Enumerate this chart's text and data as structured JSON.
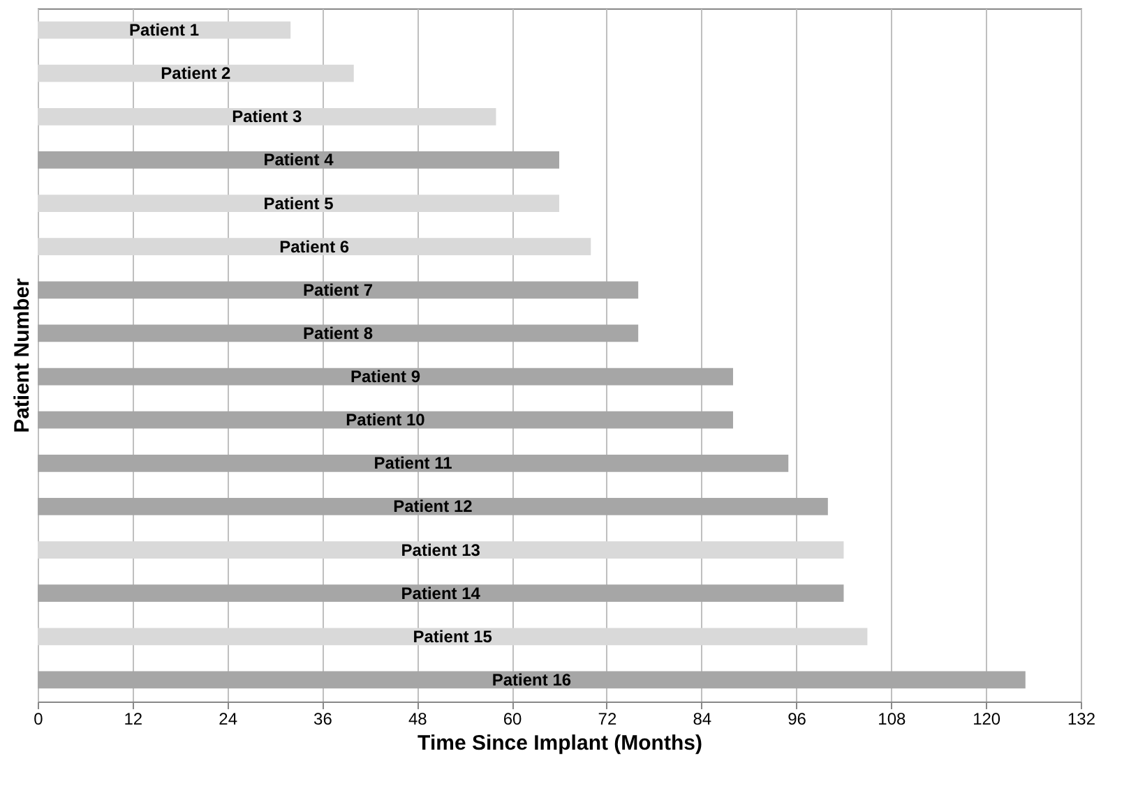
{
  "chart_data": {
    "type": "bar",
    "orientation": "horizontal",
    "xlabel": "Time Since Implant (Months)",
    "ylabel": "Patient Number",
    "categories": [
      "Patient 1",
      "Patient 2",
      "Patient 3",
      "Patient 4",
      "Patient 5",
      "Patient 6",
      "Patient 7",
      "Patient 8",
      "Patient 9",
      "Patient 10",
      "Patient 11",
      "Patient 12",
      "Patient 13",
      "Patient 14",
      "Patient 15",
      "Patient 16"
    ],
    "values": [
      32,
      40,
      58,
      66,
      66,
      70,
      76,
      76,
      88,
      88,
      95,
      100,
      102,
      102,
      105,
      125
    ],
    "colors": [
      "#d9d9d9",
      "#d9d9d9",
      "#d9d9d9",
      "#a6a6a6",
      "#d9d9d9",
      "#d9d9d9",
      "#a6a6a6",
      "#a6a6a6",
      "#a6a6a6",
      "#a6a6a6",
      "#a6a6a6",
      "#a6a6a6",
      "#d9d9d9",
      "#a6a6a6",
      "#d9d9d9",
      "#a6a6a6"
    ],
    "xlim": [
      0,
      132
    ],
    "xticks": [
      0,
      12,
      24,
      36,
      48,
      60,
      72,
      84,
      96,
      108,
      120,
      132
    ],
    "grid": "x"
  }
}
